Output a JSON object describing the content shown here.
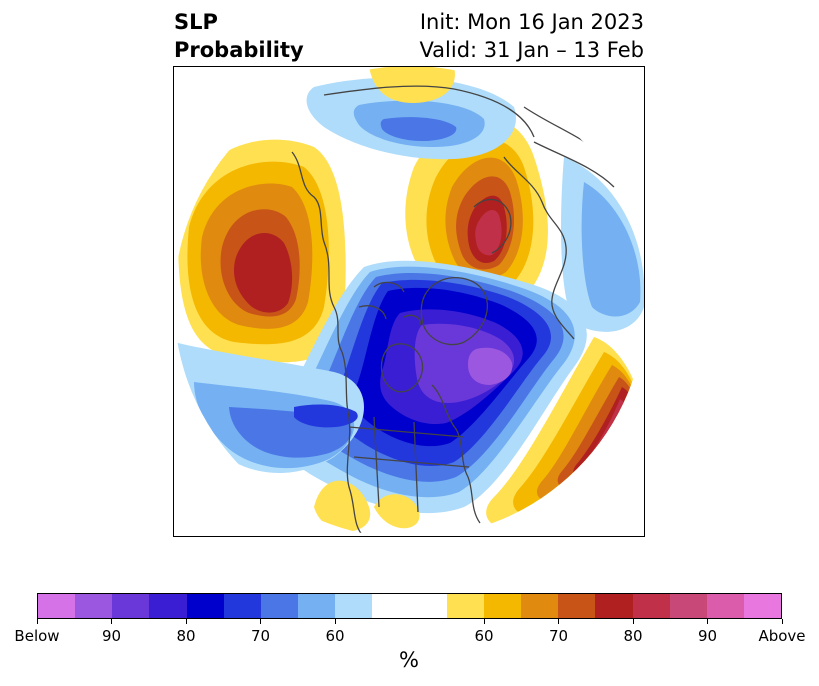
{
  "title": {
    "left_line1": "SLP",
    "left_line2": "Probability",
    "right_line1": "Init: Mon 16 Jan 2023",
    "right_line2": "Valid: 31 Jan – 13 Feb"
  },
  "colorbar": {
    "colors": [
      "#d672e8",
      "#9c57e0",
      "#6a38d8",
      "#3a1ed4",
      "#0000cc",
      "#2238dc",
      "#4a76e6",
      "#74b0f2",
      "#aedcfa",
      "#ffffff",
      "#ffffff",
      "#ffe050",
      "#f4b800",
      "#e08a10",
      "#c85418",
      "#b02020",
      "#c03048",
      "#c84878",
      "#dc5cac",
      "#e878e0"
    ],
    "ticks": [
      "Below",
      "90",
      "80",
      "70",
      "60",
      "60",
      "70",
      "80",
      "90",
      "Above"
    ],
    "unit": "%"
  },
  "map": {
    "projection": "north-polar-stereographic",
    "colors": {
      "yellow": "#ffe050",
      "gold": "#f4b800",
      "orange": "#e08a10",
      "darkorange": "#c85418",
      "red": "#b02020",
      "crimson": "#c03048",
      "lightblue": "#aedcfa",
      "skyblue": "#74b0f2",
      "medblue": "#4a76e6",
      "blue": "#2238dc",
      "navy": "#0000cc",
      "indigo": "#3a1ed4",
      "violet": "#6a38d8",
      "purple": "#9c57e0",
      "coast": "#444444"
    }
  }
}
